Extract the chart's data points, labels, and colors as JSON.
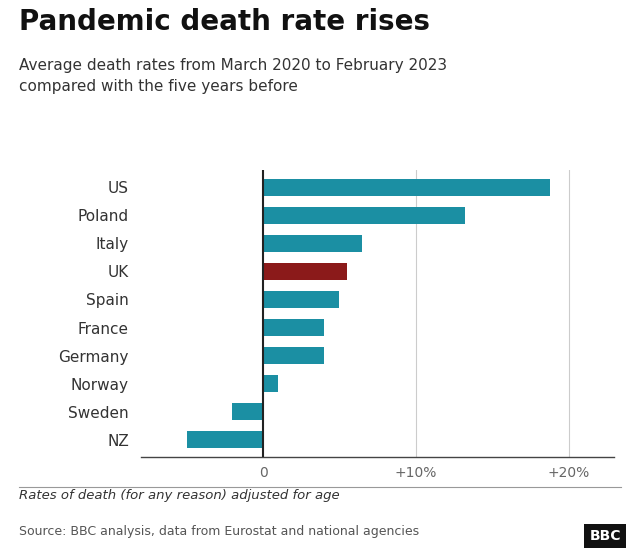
{
  "title": "Pandemic death rate rises",
  "subtitle": "Average death rates from March 2020 to February 2023\ncompared with the five years before",
  "categories": [
    "US",
    "Poland",
    "Italy",
    "UK",
    "Spain",
    "France",
    "Germany",
    "Norway",
    "Sweden",
    "NZ"
  ],
  "values": [
    18.8,
    13.2,
    6.5,
    5.5,
    5.0,
    4.0,
    4.0,
    1.0,
    -2.0,
    -5.0
  ],
  "bar_colors": [
    "#1b8fa3",
    "#1b8fa3",
    "#1b8fa3",
    "#8b1a1a",
    "#1b8fa3",
    "#1b8fa3",
    "#1b8fa3",
    "#1b8fa3",
    "#1b8fa3",
    "#1b8fa3"
  ],
  "xlim": [
    -8,
    23
  ],
  "xticks": [
    0,
    10,
    20
  ],
  "xticklabels": [
    "0",
    "+10%",
    "+20%"
  ],
  "footnote": "Rates of death (for any reason) adjusted for age",
  "source": "Source: BBC analysis, data from Eurostat and national agencies",
  "bbc_label": "BBC",
  "background_color": "#ffffff",
  "title_fontsize": 20,
  "subtitle_fontsize": 11,
  "label_fontsize": 11,
  "tick_fontsize": 10
}
